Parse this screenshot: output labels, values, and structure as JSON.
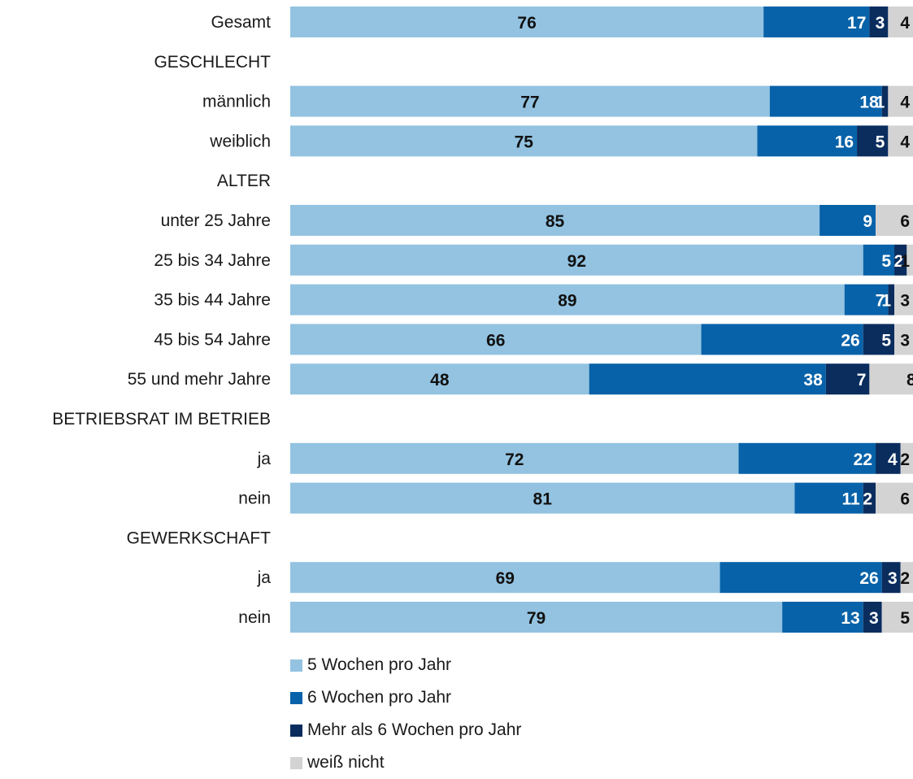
{
  "chart_data": {
    "type": "bar",
    "orientation": "horizontal",
    "stacked": true,
    "title": "",
    "xlabel": "",
    "ylabel": "",
    "xlim": [
      0,
      100
    ],
    "grid": false,
    "legend_position": "bottom",
    "rows": [
      {
        "label": "Gesamt",
        "kind": "data",
        "values": [
          76,
          17,
          3,
          4
        ]
      },
      {
        "label": "GESCHLECHT",
        "kind": "header"
      },
      {
        "label": "männlich",
        "kind": "data",
        "values": [
          77,
          18,
          1,
          4
        ]
      },
      {
        "label": "weiblich",
        "kind": "data",
        "values": [
          75,
          16,
          5,
          4
        ]
      },
      {
        "label": "ALTER",
        "kind": "header"
      },
      {
        "label": "unter 25 Jahre",
        "kind": "data",
        "values": [
          85,
          9,
          0,
          6
        ]
      },
      {
        "label": "25 bis 34 Jahre",
        "kind": "data",
        "values": [
          92,
          5,
          2,
          1
        ]
      },
      {
        "label": "35 bis 44 Jahre",
        "kind": "data",
        "values": [
          89,
          7,
          1,
          3
        ]
      },
      {
        "label": "45 bis 54 Jahre",
        "kind": "data",
        "values": [
          66,
          26,
          5,
          3
        ]
      },
      {
        "label": "55 und mehr Jahre",
        "kind": "data",
        "values": [
          48,
          38,
          7,
          8
        ]
      },
      {
        "label": "BETRIEBSRAT IM BETRIEB",
        "kind": "header"
      },
      {
        "label": "ja",
        "kind": "data",
        "values": [
          72,
          22,
          4,
          2
        ]
      },
      {
        "label": "nein",
        "kind": "data",
        "values": [
          81,
          11,
          2,
          6
        ]
      },
      {
        "label": "GEWERKSCHAFT",
        "kind": "header"
      },
      {
        "label": "ja",
        "kind": "data",
        "values": [
          69,
          26,
          3,
          2
        ]
      },
      {
        "label": "nein",
        "kind": "data",
        "values": [
          79,
          13,
          3,
          5
        ]
      }
    ],
    "series": [
      {
        "name": "5 Wochen pro Jahr",
        "color": "#93c3e1",
        "label_color": "#111111"
      },
      {
        "name": "6 Wochen pro Jahr",
        "color": "#0762a9",
        "label_color": "#ffffff"
      },
      {
        "name": "Mehr als 6 Wochen pro Jahr",
        "color": "#0a2d5e",
        "label_color": "#ffffff"
      },
      {
        "name": "weiß nicht",
        "color": "#d3d3d3",
        "label_color": "#111111"
      }
    ]
  }
}
